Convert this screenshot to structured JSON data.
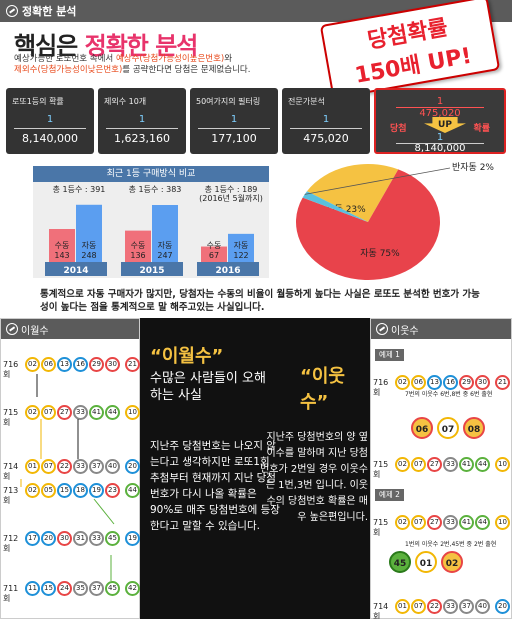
{
  "top": {
    "bar_title": "정확한 분석",
    "headline_black": "핵심은 ",
    "headline_pink": "정확한 분석",
    "subtext": {
      "l1a": "예상가능한 로또번호 속에서 ",
      "l1b": "예상수(당첨가능성이높은번호)",
      "l1c": "와",
      "l2a": "제외수(당첨가능성이낮은번호)",
      "l2b": "를 공략한다면 당첨은 문제없습니다."
    },
    "sticker": {
      "l1": "당첨확률",
      "l2": "150배 UP!"
    },
    "stats": [
      {
        "label": "로또1등의 확률",
        "num": "1",
        "den": "8,140,000"
      },
      {
        "label": "제외수 10개",
        "num": "1",
        "den": "1,623,160"
      },
      {
        "label": "50여가지의 필터링",
        "num": "1",
        "den": "177,100"
      },
      {
        "label": "전문가분석",
        "num": "1",
        "den": "475,020"
      }
    ],
    "final": {
      "num1": "1",
      "den1": "475,020",
      "dang": "당첨",
      "up": "UP",
      "hwak": "확률",
      "num2": "1",
      "den2": "8,140,000"
    },
    "chart_title": "최근 1등 구매방식 비교",
    "pie_callout": "반자동 2%",
    "bottom_text": "통계적으로 자동 구매자가 많지만, 당첨자는 수동의 비율이 월등하게 높다는 사실은 로또도 분석한 번호가 가능성이 높다는 점을 통계적으로 말 해주고있는 사실입니다."
  },
  "chart_data": [
    {
      "type": "bar",
      "title": "최근 1등 구매방식 비교",
      "categories": [
        "2014",
        "2015",
        "2016"
      ],
      "totals": [
        "총 1등수 : 391",
        "총 1등수 : 383",
        "총 1등수 : 189\n(2016년 5월까지)"
      ],
      "series": [
        {
          "name": "수동",
          "values": [
            143,
            136,
            67
          ],
          "color": "#f0707a"
        },
        {
          "name": "자동",
          "values": [
            248,
            247,
            122
          ],
          "color": "#5b9ef0"
        }
      ]
    },
    {
      "type": "pie",
      "slices": [
        {
          "label": "수동 23%",
          "value": 23,
          "color": "#f5c242"
        },
        {
          "label": "자동 75%",
          "value": 75,
          "color": "#e8434b"
        },
        {
          "label": "반자동 2%",
          "value": 2,
          "color": "#5bc0de"
        }
      ]
    }
  ],
  "left": {
    "title": "이월수",
    "rows": [
      {
        "no": "716회",
        "balls": [
          "02",
          "06",
          "13",
          "16",
          "29",
          "30"
        ],
        "bonus": "21"
      },
      {
        "no": "715회",
        "balls": [
          "02",
          "07",
          "27",
          "33",
          "41",
          "44"
        ],
        "bonus": "10"
      },
      {
        "no": "714회",
        "balls": [
          "01",
          "07",
          "22",
          "33",
          "37",
          "40"
        ],
        "bonus": "20"
      },
      {
        "no": "713회",
        "balls": [
          "02",
          "05",
          "15",
          "18",
          "19",
          "23"
        ],
        "bonus": "44"
      },
      {
        "no": "712회",
        "balls": [
          "17",
          "20",
          "30",
          "31",
          "33",
          "45"
        ],
        "bonus": "19"
      },
      {
        "no": "711회",
        "balls": [
          "11",
          "15",
          "24",
          "35",
          "37",
          "45"
        ],
        "bonus": "42"
      }
    ]
  },
  "mid": {
    "h1": "“이월수”",
    "s1": "수많은 사람들이 오해하는 사실",
    "p1": "지난주 당첨번호는 나오지 않는다고 생각하지만 로또1회 추첨부터 현재까지 지난 당첨번호가 다시 나올 확률은 90%로 매주 당첨번호에 등장한다고 말할 수 있습니다.",
    "h2": "“이웃수”",
    "p2": "지난주 당첨번호의 양 옆이수를 말하며 지난 당첨번호가 2번일 경우 이웃수는 1번,3번 입니다. 이웃수의 당첨번호 확률은 매우 높은편입니다."
  },
  "right": {
    "title": "이웃수",
    "ex1": "예제 1",
    "ex2": "예제 2",
    "note1": "7번의 이웃수 6번,8번 중 6번 출현",
    "note2": "1번의 이웃수 2번,45번 중 2번 출현",
    "r716": {
      "no": "716회",
      "balls": [
        "02",
        "06",
        "13",
        "16",
        "29",
        "30"
      ],
      "bonus": "21"
    },
    "ex1_big": [
      "06",
      "07",
      "08"
    ],
    "r715": {
      "no": "715회",
      "balls": [
        "02",
        "07",
        "27",
        "33",
        "41",
        "44"
      ],
      "bonus": "10"
    },
    "r715b": {
      "no": "715회",
      "balls": [
        "02",
        "07",
        "27",
        "33",
        "41",
        "44"
      ],
      "bonus": "10"
    },
    "ex2_big": [
      "45",
      "01",
      "02"
    ],
    "r714": {
      "no": "714회",
      "balls": [
        "01",
        "07",
        "22",
        "33",
        "37",
        "40"
      ],
      "bonus": "20"
    }
  }
}
